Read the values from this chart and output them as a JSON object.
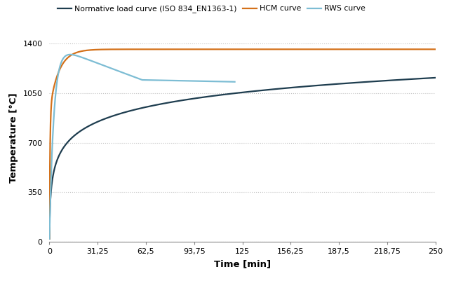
{
  "xlabel": "Time [min]",
  "ylabel": "Temperature [°C]",
  "xlim": [
    0,
    250
  ],
  "ylim": [
    0,
    1470
  ],
  "yticks": [
    0,
    350,
    700,
    1050,
    1400
  ],
  "xticks": [
    0,
    31.25,
    62.5,
    93.75,
    125,
    156.25,
    187.5,
    218.75,
    250
  ],
  "xtick_labels": [
    "0",
    "31,25",
    "62,5",
    "93,75",
    "125",
    "156,25",
    "187,5",
    "218,75",
    "250"
  ],
  "legend_labels": [
    "Normative load curve (ISO 834_EN1363-1)",
    "HCM curve",
    "RWS curve"
  ],
  "iso_color": "#1e3d4f",
  "hcm_color": "#d4711a",
  "rws_color": "#7dbdd4",
  "iso_linewidth": 1.6,
  "hcm_linewidth": 1.6,
  "rws_linewidth": 1.6,
  "background_color": "#ffffff",
  "grid_color": "#bbbbbb",
  "grid_linestyle": ":",
  "grid_alpha": 0.9
}
